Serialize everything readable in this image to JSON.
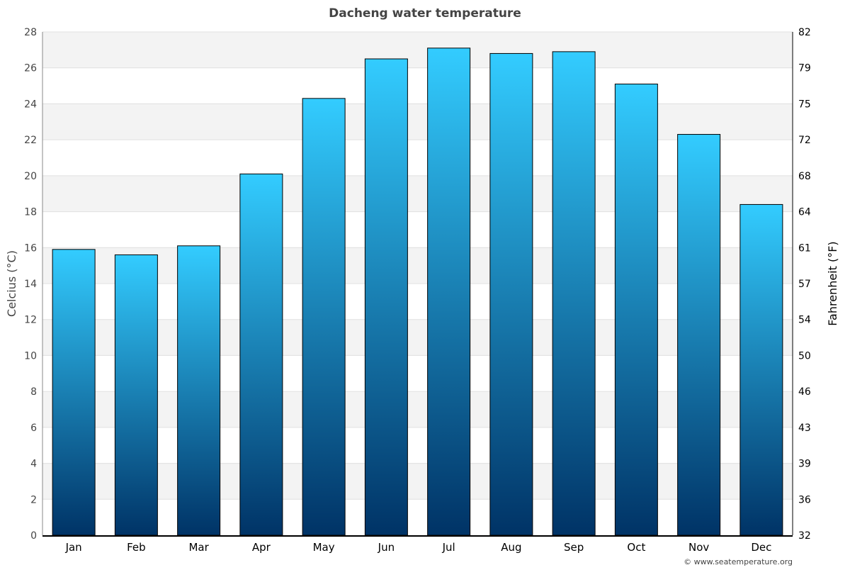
{
  "chart_data": {
    "type": "bar",
    "title": "Dacheng water temperature",
    "categories": [
      "Jan",
      "Feb",
      "Mar",
      "Apr",
      "May",
      "Jun",
      "Jul",
      "Aug",
      "Sep",
      "Oct",
      "Nov",
      "Dec"
    ],
    "values": [
      15.9,
      15.6,
      16.1,
      20.1,
      24.3,
      26.5,
      27.1,
      26.8,
      26.9,
      25.1,
      22.3,
      18.4
    ],
    "ylabel": "Celcius (°C)",
    "y2label": "Fahrenheit (°F)",
    "ylim": [
      0,
      28
    ],
    "yticks": [
      "0",
      "2",
      "4",
      "6",
      "8",
      "10",
      "12",
      "14",
      "16",
      "18",
      "20",
      "22",
      "24",
      "26",
      "28"
    ],
    "y2ticks": [
      "32",
      "36",
      "39",
      "43",
      "46",
      "50",
      "54",
      "57",
      "61",
      "64",
      "68",
      "72",
      "75",
      "79",
      "82"
    ],
    "grid": true,
    "bar_color_top": "#33ccff",
    "bar_color_bottom": "#003366",
    "band_color": "#f3f3f3"
  },
  "credit": "© www.seatemperature.org"
}
